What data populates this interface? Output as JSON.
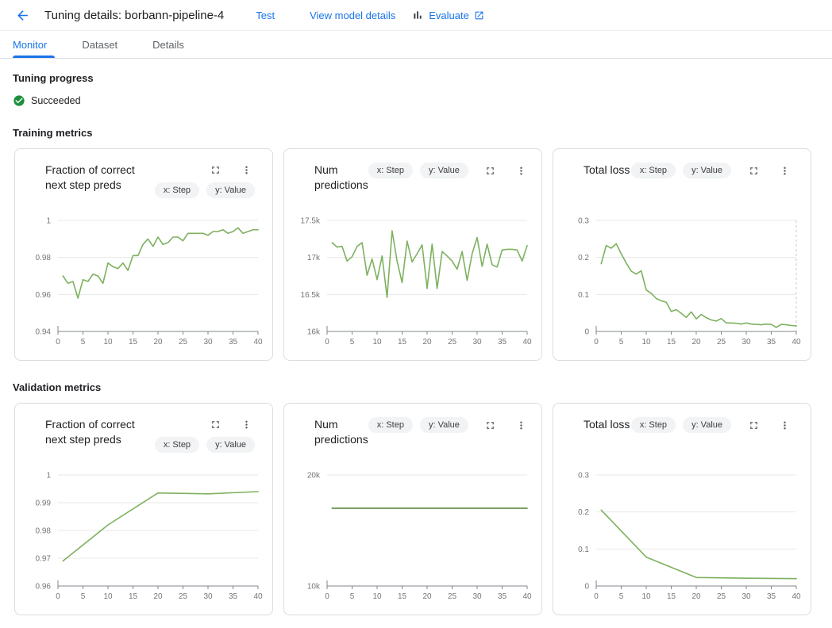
{
  "header": {
    "title": "Tuning details: borbann-pipeline-4",
    "test_label": "Test",
    "view_model_label": "View model details",
    "evaluate_label": "Evaluate"
  },
  "tabs": [
    {
      "label": "Monitor",
      "active": true
    },
    {
      "label": "Dataset",
      "active": false
    },
    {
      "label": "Details",
      "active": false
    }
  ],
  "progress": {
    "heading": "Tuning progress",
    "status": "Succeeded"
  },
  "training": {
    "heading": "Training metrics"
  },
  "validation": {
    "heading": "Validation metrics"
  },
  "colors": {
    "accent_blue": "#1a73e8",
    "status_green": "#1e8e3e",
    "line_green_light": "#7db15f",
    "line_green_dark": "#4e7e2d",
    "card_border": "#dadce0",
    "chip_bg": "#f1f3f4",
    "grid": "#e7e7e7",
    "axis": "#80868b",
    "tick_label": "#757575"
  },
  "chart_data": [
    {
      "section": "training",
      "type": "line",
      "title": "Fraction of correct next step preds",
      "title_wrap": true,
      "x_chip": "x: Step",
      "y_chip": "y: Value",
      "color": "#7db15f",
      "xlabel": "",
      "ylabel": "",
      "xlim": [
        0,
        40
      ],
      "xticks": [
        0,
        5,
        10,
        15,
        20,
        25,
        30,
        35,
        40
      ],
      "ylim": [
        0.94,
        1.0
      ],
      "yticks": [
        0.94,
        0.96,
        0.98,
        1
      ],
      "ytick_labels": [
        "0.94",
        "0.96",
        "0.98",
        "1"
      ],
      "x": [
        1,
        2,
        3,
        4,
        5,
        6,
        7,
        8,
        9,
        10,
        11,
        12,
        13,
        14,
        15,
        16,
        17,
        18,
        19,
        20,
        21,
        22,
        23,
        24,
        25,
        26,
        27,
        28,
        29,
        30,
        31,
        32,
        33,
        34,
        35,
        36,
        37,
        38,
        39,
        40
      ],
      "values": [
        0.97,
        0.966,
        0.967,
        0.958,
        0.968,
        0.967,
        0.971,
        0.97,
        0.966,
        0.977,
        0.975,
        0.974,
        0.977,
        0.973,
        0.981,
        0.981,
        0.987,
        0.99,
        0.986,
        0.991,
        0.987,
        0.988,
        0.991,
        0.991,
        0.989,
        0.993,
        0.993,
        0.993,
        0.993,
        0.992,
        0.994,
        0.994,
        0.995,
        0.993,
        0.994,
        0.996,
        0.993,
        0.994,
        0.995,
        0.995
      ],
      "crosshair_x": null
    },
    {
      "section": "training",
      "type": "line",
      "title": "Num predictions",
      "title_wrap": false,
      "x_chip": "x: Step",
      "y_chip": "y: Value",
      "color": "#7db15f",
      "xlabel": "",
      "ylabel": "",
      "xlim": [
        0,
        40
      ],
      "xticks": [
        0,
        5,
        10,
        15,
        20,
        25,
        30,
        35,
        40
      ],
      "ylim": [
        16000,
        17500
      ],
      "yticks": [
        16000,
        16500,
        17000,
        17500
      ],
      "ytick_labels": [
        "16k",
        "16.5k",
        "17k",
        "17.5k"
      ],
      "x": [
        1,
        2,
        3,
        4,
        5,
        6,
        7,
        8,
        9,
        10,
        11,
        12,
        13,
        14,
        15,
        16,
        17,
        18,
        19,
        20,
        21,
        22,
        23,
        24,
        25,
        26,
        27,
        28,
        29,
        30,
        31,
        32,
        33,
        34,
        35,
        36,
        37,
        38,
        39,
        40
      ],
      "values": [
        17200,
        17140,
        17150,
        16950,
        17010,
        17150,
        17200,
        16760,
        16980,
        16700,
        17020,
        16460,
        17360,
        16950,
        16660,
        17220,
        16940,
        17050,
        17170,
        16580,
        17180,
        16580,
        17080,
        17020,
        16950,
        16840,
        17080,
        16690,
        17050,
        17270,
        16880,
        17180,
        16900,
        16870,
        17100,
        17110,
        17110,
        17100,
        16950,
        17160
      ],
      "crosshair_x": null
    },
    {
      "section": "training",
      "type": "line",
      "title": "Total loss",
      "title_wrap": false,
      "x_chip": "x: Step",
      "y_chip": "y: Value",
      "color": "#7db15f",
      "xlabel": "",
      "ylabel": "",
      "xlim": [
        0,
        40
      ],
      "xticks": [
        0,
        5,
        10,
        15,
        20,
        25,
        30,
        35,
        40
      ],
      "ylim": [
        0,
        0.3
      ],
      "yticks": [
        0,
        0.1,
        0.2,
        0.3
      ],
      "ytick_labels": [
        "0",
        "0.1",
        "0.2",
        "0.3"
      ],
      "x": [
        1,
        2,
        3,
        4,
        5,
        6,
        7,
        8,
        9,
        10,
        11,
        12,
        13,
        14,
        15,
        16,
        17,
        18,
        19,
        20,
        21,
        22,
        23,
        24,
        25,
        26,
        27,
        28,
        29,
        30,
        31,
        32,
        33,
        34,
        35,
        36,
        37,
        38,
        39,
        40
      ],
      "values": [
        0.183,
        0.232,
        0.225,
        0.237,
        0.21,
        0.185,
        0.163,
        0.155,
        0.164,
        0.112,
        0.103,
        0.089,
        0.083,
        0.079,
        0.054,
        0.059,
        0.049,
        0.038,
        0.053,
        0.034,
        0.046,
        0.037,
        0.031,
        0.028,
        0.035,
        0.023,
        0.023,
        0.022,
        0.02,
        0.023,
        0.02,
        0.019,
        0.018,
        0.02,
        0.019,
        0.011,
        0.019,
        0.018,
        0.016,
        0.015
      ],
      "crosshair_x": 40
    },
    {
      "section": "validation",
      "type": "line",
      "title": "Fraction of correct next step preds",
      "title_wrap": true,
      "x_chip": "x: Step",
      "y_chip": "y: Value",
      "color": "#7db15f",
      "xlabel": "",
      "ylabel": "",
      "xlim": [
        0,
        40
      ],
      "xticks": [
        0,
        5,
        10,
        15,
        20,
        25,
        30,
        35,
        40
      ],
      "ylim": [
        0.96,
        1.0
      ],
      "yticks": [
        0.96,
        0.97,
        0.98,
        0.99,
        1
      ],
      "ytick_labels": [
        "0.96",
        "0.97",
        "0.98",
        "0.99",
        "1"
      ],
      "x": [
        1,
        10,
        20,
        30,
        40
      ],
      "values": [
        0.969,
        0.982,
        0.9935,
        0.9932,
        0.994
      ],
      "crosshair_x": null
    },
    {
      "section": "validation",
      "type": "line",
      "title": "Num predictions",
      "title_wrap": false,
      "x_chip": "x: Step",
      "y_chip": "y: Value",
      "color": "#4e7e2d",
      "xlabel": "",
      "ylabel": "",
      "xlim": [
        0,
        40
      ],
      "xticks": [
        0,
        5,
        10,
        15,
        20,
        25,
        30,
        35,
        40
      ],
      "ylim": [
        10000,
        20000
      ],
      "yticks": [
        10000,
        20000
      ],
      "ytick_labels": [
        "10k",
        "20k"
      ],
      "x": [
        1,
        10,
        20,
        30,
        40
      ],
      "values": [
        17000,
        17000,
        17000,
        17000,
        17000
      ],
      "crosshair_x": null
    },
    {
      "section": "validation",
      "type": "line",
      "title": "Total loss",
      "title_wrap": false,
      "x_chip": "x: Step",
      "y_chip": "y: Value",
      "color": "#7db15f",
      "xlabel": "",
      "ylabel": "",
      "xlim": [
        0,
        40
      ],
      "xticks": [
        0,
        5,
        10,
        15,
        20,
        25,
        30,
        35,
        40
      ],
      "ylim": [
        0,
        0.3
      ],
      "yticks": [
        0,
        0.1,
        0.2,
        0.3
      ],
      "ytick_labels": [
        "0",
        "0.1",
        "0.2",
        "0.3"
      ],
      "x": [
        1,
        10,
        20,
        30,
        40
      ],
      "values": [
        0.205,
        0.078,
        0.023,
        0.021,
        0.02
      ],
      "crosshair_x": null
    }
  ]
}
